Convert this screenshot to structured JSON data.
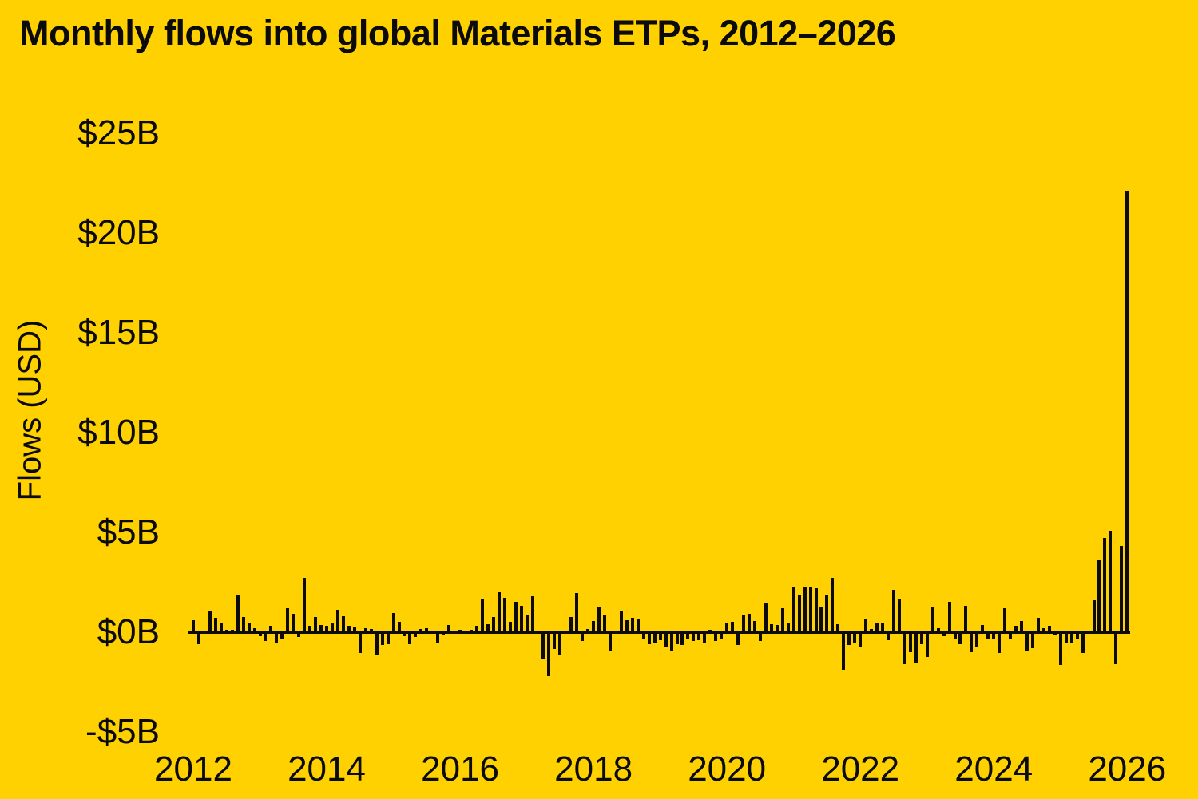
{
  "page": {
    "background_color": "#FFD100",
    "text_color": "#0b0b0b"
  },
  "chart_data": {
    "type": "bar",
    "title": "Monthly flows into global Materials ETPs, 2012–2026",
    "ylabel": "Flows (USD)",
    "xlabel": "",
    "bar_color": "#0b0b0b",
    "axis_color": "#0b0b0b",
    "grid": false,
    "legend": false,
    "unit": "USD billions",
    "frequency": "monthly",
    "ylim": [
      -6.5,
      26
    ],
    "yticks": [
      {
        "label": "$25B",
        "value": 25
      },
      {
        "label": "$20B",
        "value": 20
      },
      {
        "label": "$15B",
        "value": 15
      },
      {
        "label": "$10B",
        "value": 10
      },
      {
        "label": "$5B",
        "value": 5
      },
      {
        "label": "$0B",
        "value": 0
      },
      {
        "label": "-$5B",
        "value": -5
      }
    ],
    "xticks": [
      {
        "label": "2012",
        "year": 2012
      },
      {
        "label": "2014",
        "year": 2014
      },
      {
        "label": "2016",
        "year": 2016
      },
      {
        "label": "2018",
        "year": 2018
      },
      {
        "label": "2020",
        "year": 2020
      },
      {
        "label": "2022",
        "year": 2022
      },
      {
        "label": "2024",
        "year": 2024
      },
      {
        "label": "2026",
        "year": 2026
      }
    ],
    "series_name": "Monthly flows into global Materials ETPs ($B)",
    "values_by_year": {
      "2012": [
        0.6,
        -0.6,
        0.05,
        1.05,
        0.7,
        0.45,
        0.1,
        0.1,
        1.85,
        0.75,
        0.45,
        0.2
      ],
      "2013": [
        -0.2,
        -0.45,
        0.3,
        -0.5,
        -0.3,
        1.2,
        0.9,
        -0.25,
        2.7,
        0.3,
        0.75,
        0.35
      ],
      "2014": [
        0.3,
        0.45,
        1.1,
        0.8,
        0.3,
        0.25,
        -1.05,
        0.2,
        0.15,
        -1.1,
        -0.65,
        -0.6
      ],
      "2015": [
        0.95,
        0.5,
        -0.2,
        -0.6,
        -0.25,
        0.15,
        0.2,
        -0.05,
        -0.55,
        -0.1,
        0.35,
        -0.05
      ],
      "2016": [
        0.1,
        0.05,
        0.1,
        0.3,
        1.65,
        0.4,
        0.75,
        2.0,
        1.7,
        0.5,
        1.5,
        1.3
      ],
      "2017": [
        0.85,
        1.8,
        0.05,
        -1.3,
        -2.2,
        -0.85,
        -1.1,
        0.05,
        0.75,
        1.95,
        -0.45,
        0.15
      ],
      "2018": [
        0.55,
        1.25,
        0.85,
        -0.9,
        0.05,
        1.05,
        0.6,
        0.7,
        0.65,
        -0.3,
        -0.6,
        -0.55
      ],
      "2019": [
        -0.4,
        -0.7,
        -0.9,
        -0.6,
        -0.65,
        -0.35,
        -0.45,
        -0.4,
        -0.5,
        0.1,
        -0.45,
        -0.3
      ],
      "2020": [
        0.45,
        0.5,
        -0.65,
        0.85,
        0.9,
        0.55,
        -0.45,
        1.45,
        0.4,
        0.35,
        1.2,
        0.45
      ],
      "2021": [
        2.3,
        1.85,
        2.3,
        2.3,
        2.2,
        1.25,
        1.85,
        2.7,
        0.4,
        -1.9,
        -0.65,
        -0.55
      ],
      "2022": [
        -0.7,
        0.65,
        0.15,
        0.45,
        0.45,
        -0.4,
        2.1,
        1.65,
        -1.6,
        -1.0,
        -1.55,
        -0.6
      ],
      "2023": [
        -1.25,
        1.25,
        0.2,
        -0.2,
        1.5,
        -0.35,
        -0.6,
        1.3,
        -1.0,
        -0.75,
        0.35,
        -0.3
      ],
      "2024": [
        -0.3,
        -1.05,
        1.2,
        -0.35,
        0.3,
        0.55,
        -0.9,
        -0.8,
        0.7,
        0.2,
        0.3,
        -0.1
      ],
      "2025": [
        -1.65,
        -0.5,
        -0.55,
        -0.3,
        -1.05,
        0.05,
        1.6,
        3.6,
        4.7,
        5.1,
        -1.6,
        4.3
      ],
      "2026": [
        22.1
      ]
    }
  }
}
